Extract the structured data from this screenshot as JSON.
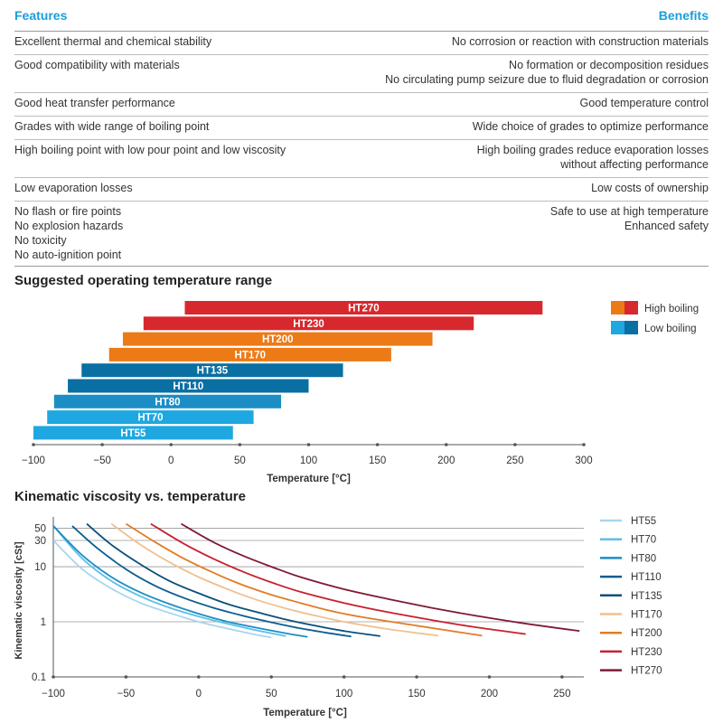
{
  "features_table": {
    "header_left": "Features",
    "header_right": "Benefits",
    "rows": [
      {
        "feature": "Excellent thermal and chemical stability",
        "benefit": "No corrosion or reaction with construction materials"
      },
      {
        "feature": "Good compatibility with materials",
        "benefit": "No formation or decomposition residues\nNo circulating pump seizure due to fluid degradation or corrosion"
      },
      {
        "feature": "Good heat transfer performance",
        "benefit": "Good temperature control"
      },
      {
        "feature": "Grades with wide range of boiling point",
        "benefit": "Wide choice of grades to optimize performance"
      },
      {
        "feature": "High boiling point with low pour point and low viscosity",
        "benefit": "High boiling grades reduce evaporation losses\nwithout affecting performance"
      },
      {
        "feature": "Low evaporation losses",
        "benefit": "Low costs of ownership"
      },
      {
        "feature": "No flash or fire points\nNo explosion hazards\nNo toxicity\nNo auto-ignition point",
        "benefit": "Safe to use at high temperature\nEnhanced safety"
      }
    ]
  },
  "chart_data": [
    {
      "type": "bar",
      "orientation": "horizontal",
      "title": "Suggested operating temperature range",
      "xlabel": "Temperature [°C]",
      "xlim": [
        -100,
        300
      ],
      "xticks": [
        -100,
        -50,
        0,
        50,
        100,
        150,
        200,
        250,
        300
      ],
      "xtick_labels": [
        "−100",
        "−50",
        "0",
        "50",
        "100",
        "150",
        "200",
        "250",
        "300"
      ],
      "legend": [
        {
          "label": "High boiling",
          "colors": [
            "#ec7a16",
            "#d7282e"
          ]
        },
        {
          "label": "Low boiling",
          "colors": [
            "#1ea7e1",
            "#0a6fa2"
          ]
        }
      ],
      "bars": [
        {
          "name": "HT270",
          "from": 10,
          "to": 270,
          "color": "#d7282e"
        },
        {
          "name": "HT230",
          "from": -20,
          "to": 220,
          "color": "#d7282e"
        },
        {
          "name": "HT200",
          "from": -35,
          "to": 190,
          "color": "#ec7a16"
        },
        {
          "name": "HT170",
          "from": -45,
          "to": 160,
          "color": "#ec7a16"
        },
        {
          "name": "HT135",
          "from": -65,
          "to": 125,
          "color": "#0a6fa2"
        },
        {
          "name": "HT110",
          "from": -75,
          "to": 100,
          "color": "#0a6fa2"
        },
        {
          "name": "HT80",
          "from": -85,
          "to": 80,
          "color": "#1b8ec5"
        },
        {
          "name": "HT70",
          "from": -90,
          "to": 60,
          "color": "#1ea7e1"
        },
        {
          "name": "HT55",
          "from": -100,
          "to": 45,
          "color": "#1ea7e1"
        }
      ]
    },
    {
      "type": "line",
      "title": "Kinematic viscosity vs. temperature",
      "xlabel": "Temperature [°C]",
      "ylabel": "Kinematic viscosity [cSt]",
      "yscale": "log",
      "xlim": [
        -100,
        265
      ],
      "ylim": [
        0.1,
        80
      ],
      "xticks": [
        -100,
        -50,
        0,
        50,
        100,
        150,
        200,
        250
      ],
      "xtick_labels": [
        "−100",
        "−50",
        "0",
        "50",
        "100",
        "150",
        "200",
        "250"
      ],
      "yticks": [
        0.1,
        1,
        10,
        30,
        50
      ],
      "ytick_labels": [
        "0.1",
        "1",
        "10",
        "30",
        "50"
      ],
      "grid": true,
      "legend_position": "right",
      "series": [
        {
          "name": "HT55",
          "color": "#a9d5ee",
          "x": [
            -100,
            -80,
            -60,
            -40,
            -20,
            0,
            20,
            40,
            50
          ],
          "y": [
            30,
            9,
            4.0,
            2.2,
            1.45,
            1.0,
            0.75,
            0.58,
            0.52
          ]
        },
        {
          "name": "HT70",
          "color": "#5cbfe8",
          "x": [
            -100,
            -80,
            -60,
            -40,
            -20,
            0,
            20,
            40,
            60
          ],
          "y": [
            55,
            14,
            5.5,
            2.9,
            1.8,
            1.25,
            0.92,
            0.7,
            0.55
          ]
        },
        {
          "name": "HT80",
          "color": "#1b8ec5",
          "x": [
            -100,
            -80,
            -60,
            -40,
            -20,
            0,
            20,
            40,
            60,
            75
          ],
          "y": [
            55,
            16,
            6.5,
            3.4,
            2.1,
            1.4,
            1.0,
            0.78,
            0.62,
            0.53
          ]
        },
        {
          "name": "HT110",
          "color": "#0a5d92",
          "x": [
            -87,
            -70,
            -50,
            -30,
            -10,
            10,
            30,
            50,
            70,
            90,
            105
          ],
          "y": [
            55,
            22,
            9,
            4.5,
            2.7,
            1.8,
            1.3,
            0.98,
            0.76,
            0.62,
            0.54
          ]
        },
        {
          "name": "HT135",
          "color": "#0b4f7a",
          "x": [
            -77,
            -60,
            -40,
            -20,
            0,
            20,
            40,
            60,
            80,
            100,
            125
          ],
          "y": [
            60,
            25,
            11,
            5.5,
            3.3,
            2.1,
            1.5,
            1.1,
            0.85,
            0.68,
            0.55
          ]
        },
        {
          "name": "HT170",
          "color": "#f0c08e",
          "x": [
            -60,
            -40,
            -20,
            0,
            20,
            40,
            60,
            80,
            100,
            130,
            165
          ],
          "y": [
            60,
            25,
            12,
            6.5,
            3.9,
            2.5,
            1.75,
            1.3,
            1.0,
            0.74,
            0.56
          ]
        },
        {
          "name": "HT200",
          "color": "#e27c24",
          "x": [
            -50,
            -30,
            -10,
            10,
            30,
            50,
            70,
            90,
            110,
            150,
            195
          ],
          "y": [
            60,
            28,
            14,
            7.8,
            4.7,
            3.1,
            2.2,
            1.6,
            1.25,
            0.85,
            0.56
          ]
        },
        {
          "name": "HT230",
          "color": "#c8202f",
          "x": [
            -33,
            -10,
            10,
            30,
            50,
            70,
            100,
            130,
            160,
            190,
            225
          ],
          "y": [
            60,
            26,
            14,
            8.2,
            5.2,
            3.5,
            2.2,
            1.5,
            1.08,
            0.8,
            0.6
          ]
        },
        {
          "name": "HT270",
          "color": "#7e1b34",
          "x": [
            -12,
            10,
            30,
            50,
            70,
            100,
            130,
            160,
            190,
            220,
            262
          ],
          "y": [
            60,
            28,
            16,
            10,
            6.5,
            3.9,
            2.6,
            1.8,
            1.3,
            0.97,
            0.68
          ]
        }
      ]
    }
  ]
}
